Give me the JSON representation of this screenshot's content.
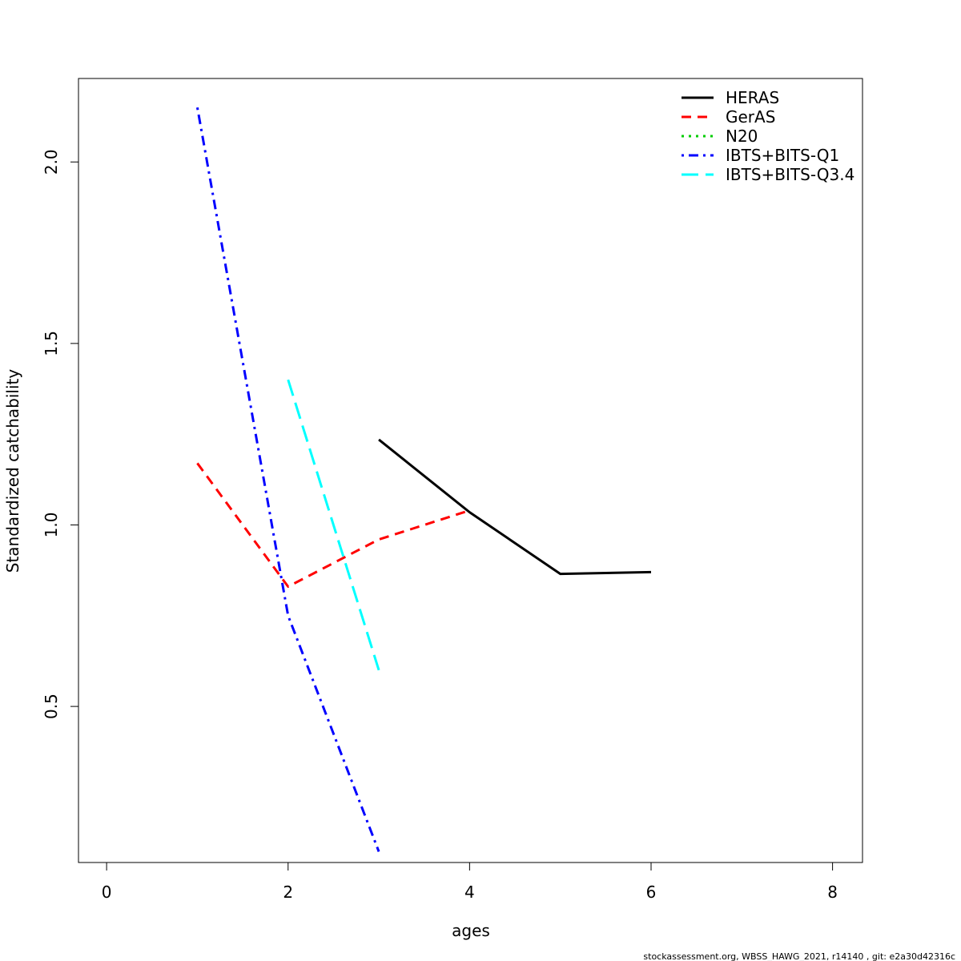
{
  "chart_data": {
    "type": "line",
    "xlabel": "ages",
    "ylabel": "Standardized catchability",
    "xlim": [
      -0.31,
      8.33
    ],
    "ylim": [
      0.07,
      2.23
    ],
    "x_ticks": [
      0,
      2,
      4,
      6,
      8
    ],
    "y_ticks": [
      0.5,
      1.0,
      1.5,
      2.0
    ],
    "x_tick_labels": [
      "0",
      "2",
      "4",
      "6",
      "8"
    ],
    "y_tick_labels": [
      "0.5",
      "1.0",
      "1.5",
      "2.0"
    ],
    "grid": false,
    "legend_position": "top-right",
    "series": [
      {
        "name": "HERAS",
        "color": "#000000",
        "dash": "solid",
        "x": [
          3,
          4,
          5,
          6
        ],
        "y": [
          1.235,
          1.035,
          0.865,
          0.87
        ]
      },
      {
        "name": "GerAS",
        "color": "#ff0000",
        "dash": "dashed",
        "x": [
          1,
          2,
          3,
          4
        ],
        "y": [
          1.17,
          0.83,
          0.96,
          1.04
        ]
      },
      {
        "name": "N20",
        "color": "#00cd00",
        "dash": "dotted",
        "x": [],
        "y": []
      },
      {
        "name": "IBTS+BITS-Q1",
        "color": "#0000ff",
        "dash": "dotdash",
        "x": [
          1,
          2,
          3
        ],
        "y": [
          2.15,
          0.75,
          0.1
        ]
      },
      {
        "name": "IBTS+BITS-Q3.4",
        "color": "#00ffff",
        "dash": "longdash",
        "x": [
          2,
          3
        ],
        "y": [
          1.4,
          0.6
        ]
      }
    ]
  },
  "footer": "stockassessment.org, WBSS_HAWG_2021, r14140 , git: e2a30d42316c"
}
